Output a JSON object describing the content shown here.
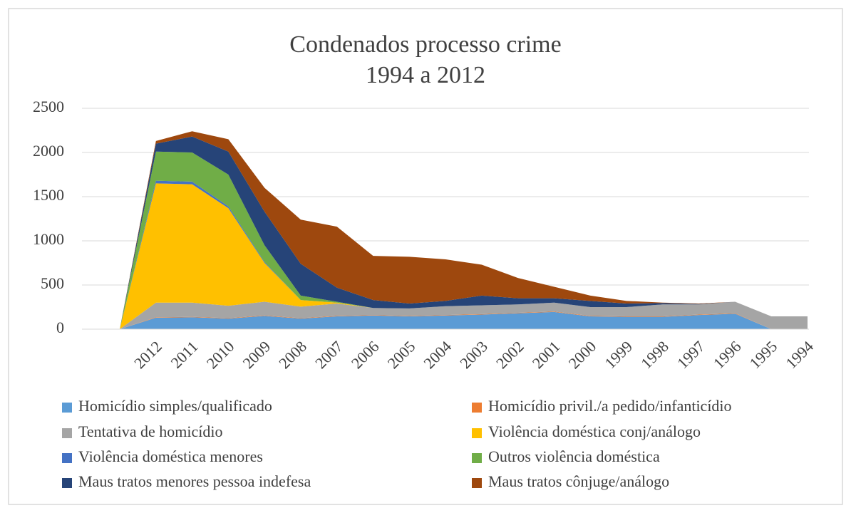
{
  "chart_data": {
    "type": "stacked_area",
    "title": "Condenados processo crime",
    "subtitle": "1994 a 2012",
    "categories": [
      null,
      "2012",
      "2011",
      "2010",
      "2009",
      "2008",
      "2007",
      "2006",
      "2005",
      "2004",
      "2003",
      "2002",
      "2001",
      "2000",
      "1999",
      "1998",
      "1997",
      "1996",
      "1995",
      "1994"
    ],
    "ylim": [
      0,
      2500
    ],
    "yticks": [
      0,
      500,
      1000,
      1500,
      2000,
      2500
    ],
    "grid": true,
    "legend": "bottom",
    "series": [
      {
        "name": "Homicídio simples/qualificado",
        "color": "#5b9bd5",
        "values": [
          0,
          130,
          135,
          120,
          150,
          120,
          145,
          155,
          145,
          155,
          165,
          180,
          195,
          145,
          140,
          140,
          160,
          175,
          0,
          0
        ]
      },
      {
        "name": "Homicídio privil./a pedido/infanticídio",
        "color": "#ed7d31",
        "values": [
          0,
          5,
          5,
          5,
          5,
          5,
          5,
          5,
          5,
          5,
          5,
          5,
          5,
          5,
          5,
          5,
          5,
          5,
          0,
          0
        ]
      },
      {
        "name": "Tentativa de homicídio",
        "color": "#a5a5a5",
        "values": [
          0,
          165,
          160,
          140,
          155,
          130,
          140,
          80,
          85,
          100,
          100,
          95,
          100,
          100,
          105,
          135,
          115,
          130,
          145,
          145
        ]
      },
      {
        "name": "Violência doméstica conj/análogo",
        "color": "#ffc000",
        "values": [
          0,
          1350,
          1340,
          1105,
          440,
          75,
          10,
          0,
          0,
          0,
          0,
          0,
          0,
          0,
          0,
          0,
          0,
          0,
          0,
          0
        ]
      },
      {
        "name": "Violência doméstica menores",
        "color": "#4472c4",
        "values": [
          0,
          30,
          30,
          20,
          10,
          0,
          0,
          0,
          0,
          0,
          0,
          0,
          0,
          0,
          0,
          0,
          0,
          0,
          0,
          0
        ]
      },
      {
        "name": "Outros violência doméstica",
        "color": "#70ad47",
        "values": [
          0,
          330,
          330,
          360,
          190,
          50,
          10,
          0,
          0,
          0,
          0,
          0,
          0,
          0,
          0,
          0,
          0,
          0,
          0,
          0
        ]
      },
      {
        "name": "Maus tratos menores pessoa indefesa",
        "color": "#264478",
        "values": [
          0,
          90,
          180,
          260,
          380,
          360,
          160,
          90,
          55,
          60,
          110,
          70,
          50,
          70,
          40,
          15,
          5,
          0,
          0,
          0
        ]
      },
      {
        "name": "Maus tratos cônjuge/análogo",
        "color": "#9e480e",
        "values": [
          0,
          30,
          60,
          140,
          270,
          500,
          690,
          500,
          530,
          470,
          350,
          230,
          130,
          60,
          30,
          5,
          5,
          0,
          0,
          0
        ]
      }
    ]
  }
}
